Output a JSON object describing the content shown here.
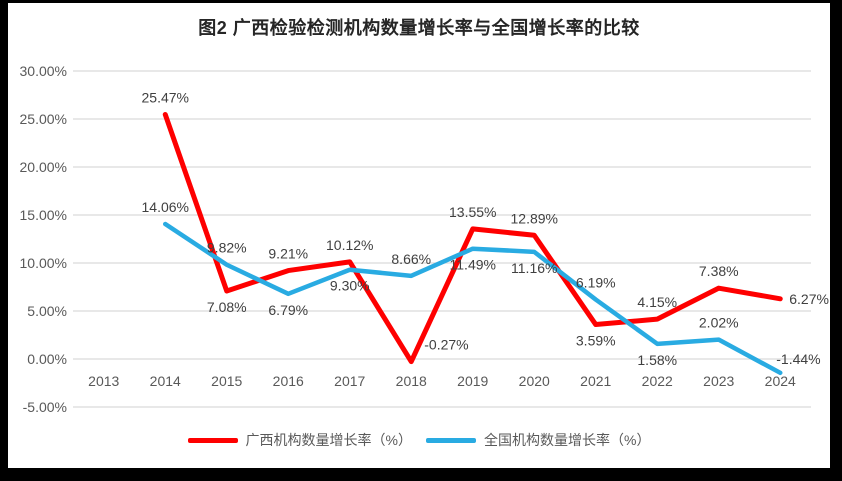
{
  "title": "图2 广西检验检测机构数量增长率与全国增长率的比较",
  "colors": {
    "frame": "#000000",
    "card_background": "#ffffff",
    "grid": "#d9d9d9",
    "axis_text": "#595959",
    "data_label_text": "#404040",
    "title_text": "#262626",
    "guangxi_red": "#fe0000",
    "national_blue": "#29abe2"
  },
  "chart_data": {
    "type": "line",
    "title": "图2 广西检验检测机构数量增长率与全国增长率的比较",
    "categories": [
      "2013",
      "2014",
      "2015",
      "2016",
      "2017",
      "2018",
      "2019",
      "2020",
      "2021",
      "2022",
      "2023",
      "2024"
    ],
    "series": [
      {
        "name": "广西机构数量增长率（%）",
        "color": "#fe0000",
        "values": [
          null,
          25.47,
          7.08,
          9.21,
          10.12,
          -0.27,
          13.55,
          12.89,
          3.59,
          4.15,
          7.38,
          6.27
        ],
        "labels": [
          null,
          "25.47%",
          "7.08%",
          "9.21%",
          "10.12%",
          "-0.27%",
          "13.55%",
          "12.89%",
          "3.59%",
          "4.15%",
          "7.38%",
          "6.27%"
        ],
        "label_positions": [
          null,
          "above",
          "below",
          "above",
          "above",
          "above-right",
          "above",
          "above",
          "below",
          "above",
          "above",
          "right"
        ]
      },
      {
        "name": "全国机构数量增长率（%）",
        "color": "#29abe2",
        "values": [
          null,
          14.06,
          9.82,
          6.79,
          9.3,
          8.66,
          11.49,
          11.16,
          6.19,
          1.58,
          2.02,
          -1.44
        ],
        "labels": [
          null,
          "14.06%",
          "9.82%",
          "6.79%",
          "9.30%",
          "8.66%",
          "11.49%",
          "11.16%",
          "6.19%",
          "1.58%",
          "2.02%",
          "-1.44%"
        ],
        "label_positions": [
          null,
          "above",
          "above",
          "below",
          "below",
          "above",
          "below",
          "below",
          "above",
          "below",
          "above",
          "end-above"
        ]
      }
    ],
    "y_ticks": [
      {
        "value": 30,
        "label": "30.00%"
      },
      {
        "value": 25,
        "label": "25.00%"
      },
      {
        "value": 20,
        "label": "20.00%"
      },
      {
        "value": 15,
        "label": "15.00%"
      },
      {
        "value": 10,
        "label": "10.00%"
      },
      {
        "value": 5,
        "label": "5.00%"
      },
      {
        "value": 0,
        "label": "0.00%"
      },
      {
        "value": -5,
        "label": "-5.00%"
      }
    ],
    "ylim": [
      -5,
      30
    ],
    "grid": true,
    "legend_position": "bottom"
  }
}
